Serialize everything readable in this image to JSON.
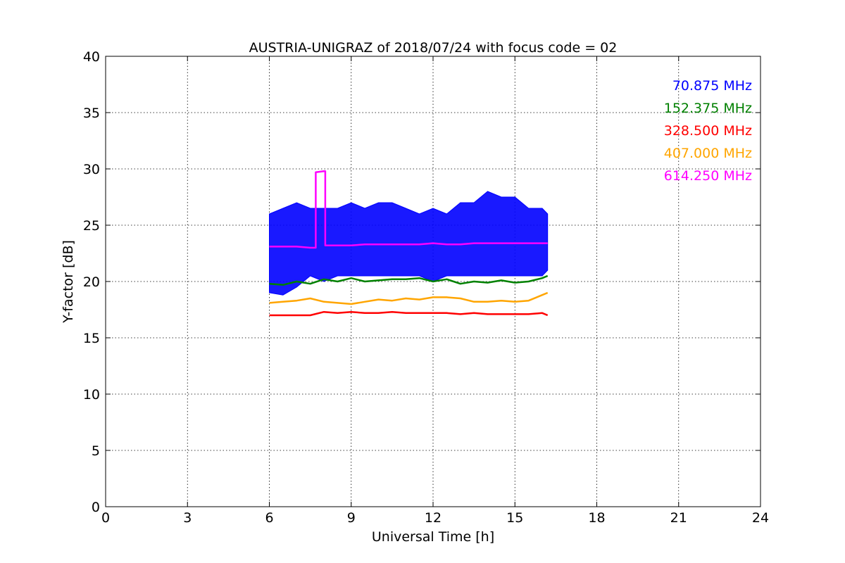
{
  "chart_data": {
    "type": "line",
    "title": "AUSTRIA-UNIGRAZ of 2018/07/24 with focus code = 02",
    "xlabel": "Universal Time [h]",
    "ylabel": "Y-factor [dB]",
    "xlim": [
      0,
      24
    ],
    "ylim": [
      0,
      40
    ],
    "xticks": [
      0,
      3,
      6,
      9,
      12,
      15,
      18,
      21,
      24
    ],
    "yticks": [
      0,
      5,
      10,
      15,
      20,
      25,
      30,
      35,
      40
    ],
    "grid": true,
    "legend_position": "top-right",
    "series": [
      {
        "name": "70.875 MHz",
        "color": "#0000ff",
        "x": [
          6.0,
          6.5,
          7.0,
          7.5,
          8.0,
          8.5,
          9.0,
          9.5,
          10.0,
          10.5,
          11.0,
          11.5,
          12.0,
          12.5,
          13.0,
          13.5,
          14.0,
          14.5,
          15.0,
          15.5,
          16.0,
          16.2
        ],
        "y_min": [
          19.0,
          18.8,
          19.5,
          20.5,
          20.0,
          20.5,
          20.5,
          20.5,
          20.5,
          20.5,
          20.5,
          20.5,
          20.0,
          20.5,
          20.5,
          20.5,
          20.5,
          20.5,
          20.5,
          20.5,
          20.5,
          21.0
        ],
        "y_max": [
          26.0,
          26.5,
          27.0,
          26.5,
          26.5,
          26.5,
          27.0,
          26.5,
          27.0,
          27.0,
          26.5,
          26.0,
          26.5,
          26.0,
          27.0,
          27.0,
          28.0,
          27.5,
          27.5,
          26.5,
          26.5,
          26.0
        ]
      },
      {
        "name": "152.375 MHz",
        "color": "#008000",
        "x": [
          6.0,
          6.5,
          7.0,
          7.5,
          8.0,
          8.5,
          9.0,
          9.5,
          10.0,
          10.5,
          11.0,
          11.5,
          12.0,
          12.5,
          13.0,
          13.5,
          14.0,
          14.5,
          15.0,
          15.5,
          16.0,
          16.2
        ],
        "y": [
          19.8,
          19.7,
          20.0,
          19.8,
          20.2,
          20.0,
          20.3,
          20.0,
          20.1,
          20.2,
          20.2,
          20.3,
          20.0,
          20.2,
          19.8,
          20.0,
          19.9,
          20.1,
          19.9,
          20.0,
          20.3,
          20.5
        ]
      },
      {
        "name": "328.500 MHz",
        "color": "#ff0000",
        "x": [
          6.0,
          6.5,
          7.0,
          7.5,
          8.0,
          8.5,
          9.0,
          9.5,
          10.0,
          10.5,
          11.0,
          11.5,
          12.0,
          12.5,
          13.0,
          13.5,
          14.0,
          14.5,
          15.0,
          15.5,
          16.0,
          16.2
        ],
        "y": [
          17.0,
          17.0,
          17.0,
          17.0,
          17.3,
          17.2,
          17.3,
          17.2,
          17.2,
          17.3,
          17.2,
          17.2,
          17.2,
          17.2,
          17.1,
          17.2,
          17.1,
          17.1,
          17.1,
          17.1,
          17.2,
          17.0
        ]
      },
      {
        "name": "407.000 MHz",
        "color": "#ffa500",
        "x": [
          6.0,
          6.5,
          7.0,
          7.5,
          8.0,
          8.5,
          9.0,
          9.5,
          10.0,
          10.5,
          11.0,
          11.5,
          12.0,
          12.5,
          13.0,
          13.5,
          14.0,
          14.5,
          15.0,
          15.5,
          16.0,
          16.2
        ],
        "y": [
          18.1,
          18.2,
          18.3,
          18.5,
          18.2,
          18.1,
          18.0,
          18.2,
          18.4,
          18.3,
          18.5,
          18.4,
          18.6,
          18.6,
          18.5,
          18.2,
          18.2,
          18.3,
          18.2,
          18.3,
          18.8,
          19.0
        ]
      },
      {
        "name": "614.250 MHz",
        "color": "#ff00ff",
        "x": [
          6.0,
          6.5,
          7.0,
          7.5,
          7.7,
          7.7,
          8.0,
          8.05,
          8.05,
          8.5,
          9.0,
          9.5,
          10.0,
          10.5,
          11.0,
          11.5,
          12.0,
          12.5,
          13.0,
          13.5,
          14.0,
          14.5,
          15.0,
          15.5,
          16.0,
          16.2
        ],
        "y": [
          23.1,
          23.1,
          23.1,
          23.0,
          23.0,
          29.7,
          29.8,
          29.8,
          23.2,
          23.2,
          23.2,
          23.3,
          23.3,
          23.3,
          23.3,
          23.3,
          23.4,
          23.3,
          23.3,
          23.4,
          23.4,
          23.4,
          23.4,
          23.4,
          23.4,
          23.4
        ]
      }
    ]
  }
}
